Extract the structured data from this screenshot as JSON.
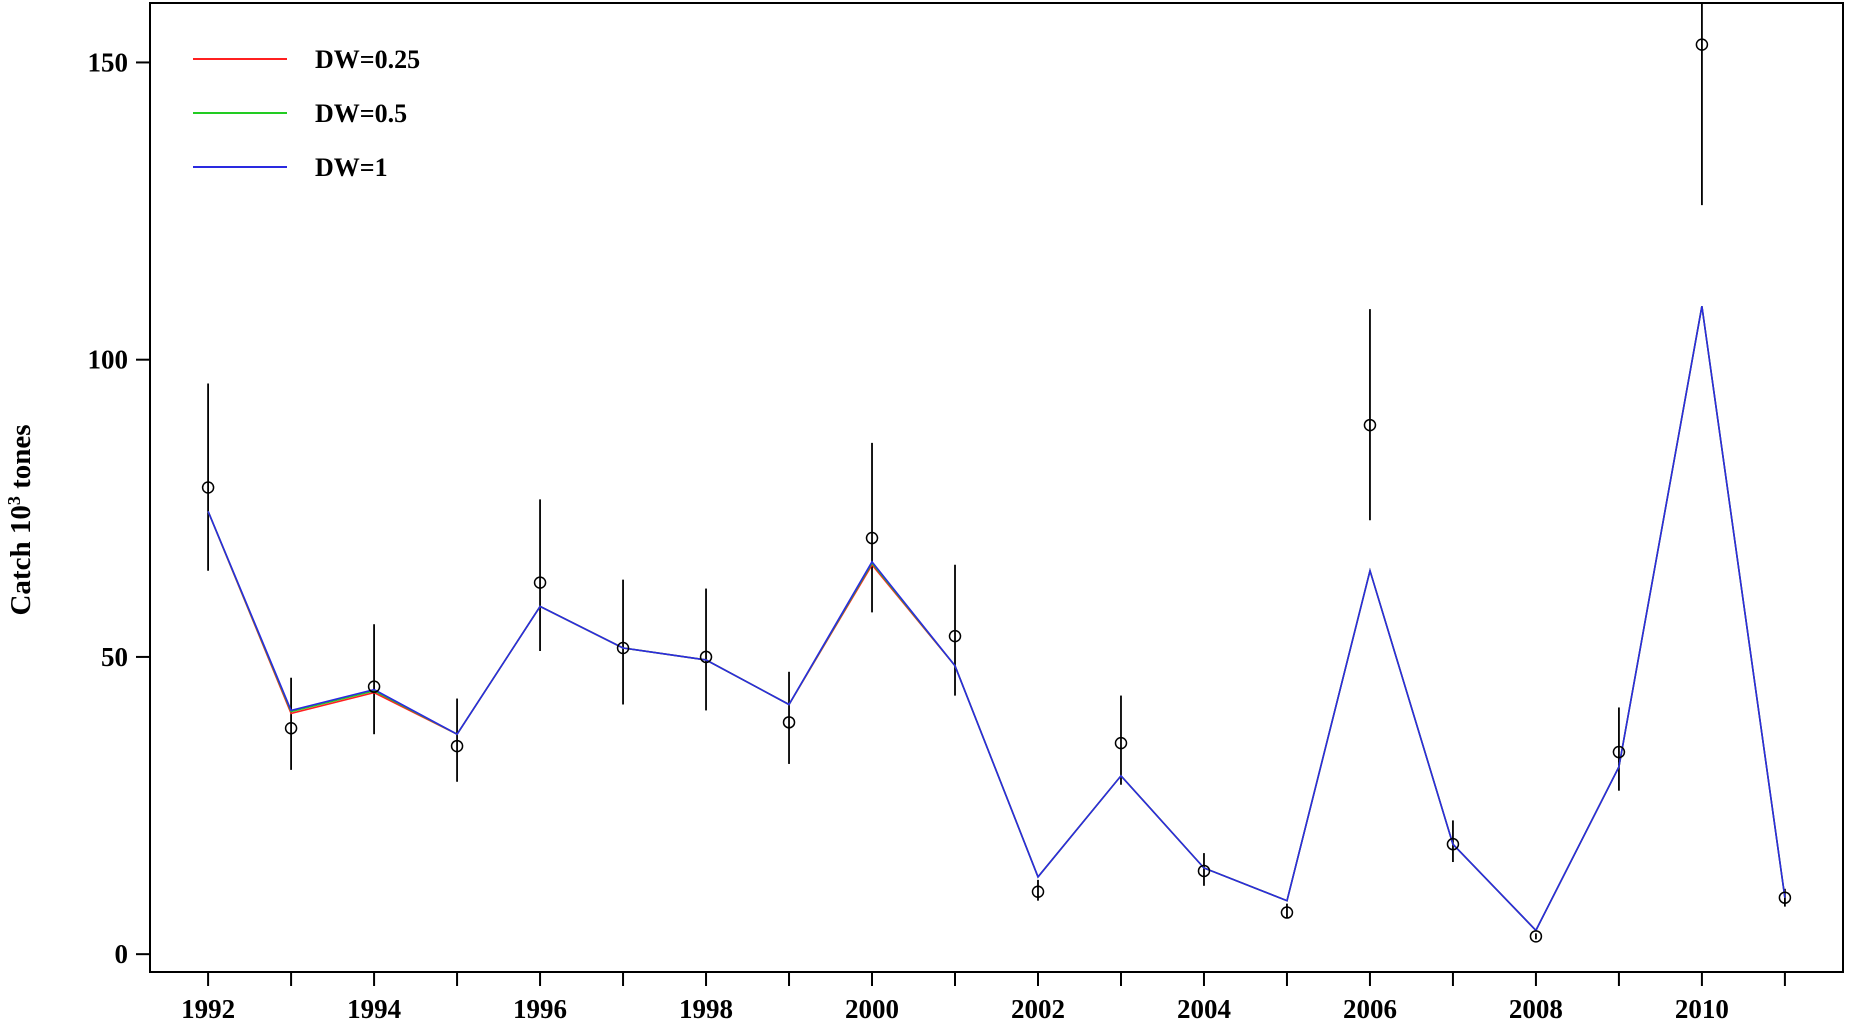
{
  "chart_data": {
    "type": "line",
    "title": "",
    "xlabel": "",
    "ylabel": "Catch 10",
    "ylabel_sup": "3",
    "ylabel_suffix": " tones",
    "xlim": [
      1991.3,
      2011.7
    ],
    "ylim": [
      -3,
      160
    ],
    "x_ticks": [
      1992,
      1993,
      1994,
      1995,
      1996,
      1997,
      1998,
      1999,
      2000,
      2001,
      2002,
      2003,
      2004,
      2005,
      2006,
      2007,
      2008,
      2009,
      2010,
      2011
    ],
    "x_tick_labels": [
      "1992",
      "1994",
      "1996",
      "1998",
      "2000",
      "2002",
      "2004",
      "2006",
      "2008",
      "2010"
    ],
    "x_tick_label_values": [
      1992,
      1994,
      1996,
      1998,
      2000,
      2002,
      2004,
      2006,
      2008,
      2010
    ],
    "y_ticks": [
      0,
      50,
      100,
      150
    ],
    "y_tick_labels": [
      "0",
      "50",
      "100",
      "150"
    ],
    "legend_position": "top-left",
    "grid": false,
    "x": [
      1992,
      1993,
      1994,
      1995,
      1996,
      1997,
      1998,
      1999,
      2000,
      2001,
      2002,
      2003,
      2004,
      2005,
      2006,
      2007,
      2008,
      2009,
      2010,
      2011
    ],
    "series": [
      {
        "name": "DW=0.25",
        "color": "#ff2020",
        "values": [
          74.5,
          40.5,
          44.0,
          37.0,
          58.5,
          51.5,
          49.5,
          42.0,
          65.5,
          48.5,
          13.0,
          30.0,
          14.5,
          9.0,
          64.5,
          18.5,
          4.0,
          31.5,
          109.0,
          9.5
        ]
      },
      {
        "name": "DW=0.5",
        "color": "#22cc22",
        "values": [
          74.5,
          40.8,
          44.3,
          37.0,
          58.5,
          51.5,
          49.5,
          42.0,
          65.8,
          48.5,
          13.0,
          30.0,
          14.5,
          9.0,
          64.5,
          18.5,
          4.0,
          31.5,
          109.0,
          9.5
        ]
      },
      {
        "name": "DW=1",
        "color": "#2a2ae0",
        "values": [
          74.5,
          41.0,
          44.5,
          37.0,
          58.5,
          51.5,
          49.5,
          42.0,
          66.0,
          48.5,
          13.0,
          30.0,
          14.5,
          9.0,
          64.5,
          18.5,
          4.0,
          31.5,
          109.0,
          9.5
        ]
      }
    ],
    "observed": {
      "values": [
        78.5,
        38.0,
        45.0,
        35.0,
        62.5,
        51.5,
        50.0,
        39.0,
        70.0,
        53.5,
        10.5,
        35.5,
        14.0,
        7.0,
        89.0,
        18.5,
        3.0,
        34.0,
        153.0,
        9.5
      ],
      "lower": [
        64.5,
        31.0,
        37.0,
        29.0,
        51.0,
        42.0,
        41.0,
        32.0,
        57.5,
        43.5,
        9.0,
        28.5,
        11.5,
        6.0,
        73.0,
        15.5,
        2.5,
        27.5,
        126.0,
        8.0
      ],
      "upper": [
        96.0,
        46.5,
        55.5,
        43.0,
        76.5,
        63.0,
        61.5,
        47.5,
        86.0,
        65.5,
        12.5,
        43.5,
        17.0,
        8.5,
        108.5,
        22.5,
        3.5,
        41.5,
        160.0,
        11.0
      ],
      "color": "#000000"
    }
  }
}
